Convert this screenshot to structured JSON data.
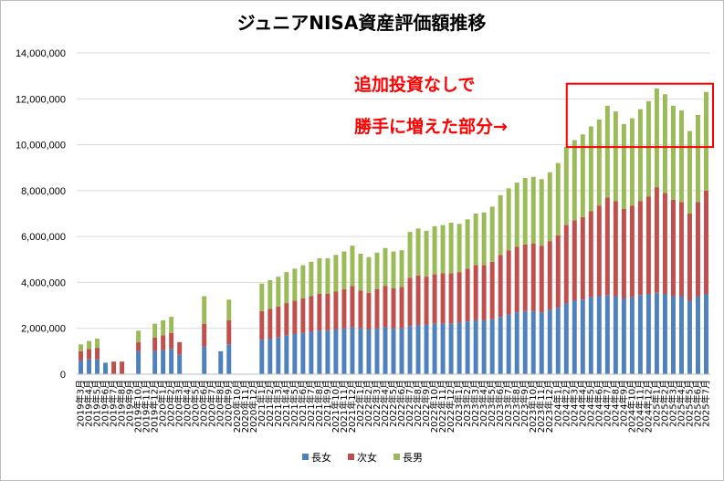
{
  "chart_data": {
    "type": "bar",
    "stacked": true,
    "title": "ジュニアNISA資産評価額推移",
    "xlabel": "",
    "ylabel": "",
    "ylim": [
      0,
      14000000
    ],
    "yticks": [
      0,
      2000000,
      4000000,
      6000000,
      8000000,
      10000000,
      12000000,
      14000000
    ],
    "ytick_labels": [
      "0",
      "2,000,000",
      "4,000,000",
      "6,000,000",
      "8,000,000",
      "10,000,000",
      "12,000,000",
      "14,000,000"
    ],
    "grid": true,
    "legend_position": "bottom",
    "categories": [
      "2019年3月",
      "2019年4月",
      "2019年5月",
      "2019年6月",
      "2019年7月",
      "2019年8月",
      "2019年9月",
      "2019年10月",
      "2019年11月",
      "2019年12月",
      "2020年1月",
      "2020年2月",
      "2020年3月",
      "2020年4月",
      "2020年5月",
      "2020年6月",
      "2020年7月",
      "2020年8月",
      "2020年9月",
      "2020年10月",
      "2020年11月",
      "2020年12月",
      "2021年1月",
      "2021年2月",
      "2021年3月",
      "2021年4月",
      "2021年5月",
      "2021年6月",
      "2021年7月",
      "2021年8月",
      "2021年9月",
      "2021年10月",
      "2021年11月",
      "2021年12月",
      "2022年1月",
      "2022年2月",
      "2022年3月",
      "2022年4月",
      "2022年5月",
      "2022年6月",
      "2022年7月",
      "2022年8月",
      "2022年9月",
      "2022年10月",
      "2022年11月",
      "2022年12月",
      "2023年1月",
      "2023年2月",
      "2023年3月",
      "2023年4月",
      "2023年5月",
      "2023年6月",
      "2023年7月",
      "2023年8月",
      "2023年9月",
      "2023年10月",
      "2023年11月",
      "2023年12月",
      "2024年1月",
      "2024年2月",
      "2024年3月",
      "2024年4月",
      "2024年5月",
      "2024年6月",
      "2024年7月",
      "2024年8月",
      "2024年9月",
      "2024年10月",
      "2024年11月",
      "2024年12月",
      "2025年1月",
      "2025年2月",
      "2025年3月",
      "2025年4月",
      "2025年5月",
      "2025年6月",
      "2025年7月"
    ],
    "series": [
      {
        "name": "長女",
        "color": "#4f81bd",
        "values": [
          600000,
          650000,
          650000,
          500000,
          0,
          0,
          0,
          1000000,
          0,
          1000000,
          1050000,
          1100000,
          850000,
          0,
          0,
          1200000,
          0,
          1000000,
          1300000,
          0,
          0,
          0,
          1500000,
          1550000,
          1600000,
          1700000,
          1750000,
          1800000,
          1850000,
          1900000,
          1900000,
          1950000,
          2000000,
          2050000,
          2000000,
          1950000,
          2000000,
          2050000,
          2000000,
          2000000,
          2100000,
          2150000,
          2150000,
          2200000,
          2200000,
          2200000,
          2250000,
          2300000,
          2350000,
          2350000,
          2400000,
          2500000,
          2600000,
          2700000,
          2750000,
          2750000,
          2700000,
          2800000,
          2900000,
          3100000,
          3200000,
          3250000,
          3350000,
          3400000,
          3450000,
          3400000,
          3300000,
          3350000,
          3450000,
          3500000,
          3550000,
          3500000,
          3400000,
          3400000,
          3200000,
          3400000,
          3500000
        ]
      },
      {
        "name": "次女",
        "color": "#c0504d",
        "values": [
          400000,
          450000,
          500000,
          0,
          550000,
          550000,
          0,
          400000,
          0,
          600000,
          650000,
          700000,
          550000,
          0,
          0,
          1000000,
          0,
          0,
          1050000,
          0,
          0,
          0,
          1250000,
          1300000,
          1350000,
          1400000,
          1450000,
          1500000,
          1550000,
          1600000,
          1600000,
          1650000,
          1700000,
          1800000,
          1650000,
          1600000,
          1700000,
          1800000,
          1750000,
          1800000,
          2100000,
          2150000,
          2100000,
          2150000,
          2200000,
          2200000,
          2200000,
          2300000,
          2400000,
          2400000,
          2500000,
          2700000,
          2800000,
          2850000,
          2900000,
          2950000,
          2900000,
          3000000,
          3150000,
          3400000,
          3500000,
          3600000,
          3750000,
          3950000,
          4250000,
          4150000,
          3900000,
          4000000,
          4100000,
          4250000,
          4600000,
          4400000,
          4200000,
          4100000,
          3800000,
          4100000,
          4500000
        ]
      },
      {
        "name": "長男",
        "color": "#9bbb59",
        "values": [
          300000,
          350000,
          400000,
          0,
          0,
          0,
          0,
          500000,
          0,
          600000,
          650000,
          700000,
          0,
          0,
          0,
          1200000,
          0,
          0,
          900000,
          0,
          0,
          0,
          1200000,
          1250000,
          1300000,
          1350000,
          1400000,
          1450000,
          1500000,
          1550000,
          1550000,
          1600000,
          1650000,
          1750000,
          1600000,
          1550000,
          1600000,
          1650000,
          1600000,
          1600000,
          2000000,
          2050000,
          2000000,
          2100000,
          2100000,
          2200000,
          2100000,
          2150000,
          2250000,
          2300000,
          2400000,
          2600000,
          2700000,
          2800000,
          2900000,
          2900000,
          2900000,
          3000000,
          3150000,
          3400000,
          3500000,
          3600000,
          3700000,
          3750000,
          4000000,
          3900000,
          3700000,
          3800000,
          4000000,
          4150000,
          4300000,
          4300000,
          4100000,
          4000000,
          3600000,
          3800000,
          4300000
        ]
      }
    ],
    "annotations": [
      {
        "text": "追加投資なしで",
        "color": "#ff0000"
      },
      {
        "text": "勝手に増えた部分→",
        "color": "#ff0000"
      }
    ],
    "highlight_box": {
      "x_from": "2024年3月",
      "x_to": "2025年7月",
      "y_from": 9900000,
      "y_to": 12500000,
      "color": "#ff0000"
    }
  }
}
